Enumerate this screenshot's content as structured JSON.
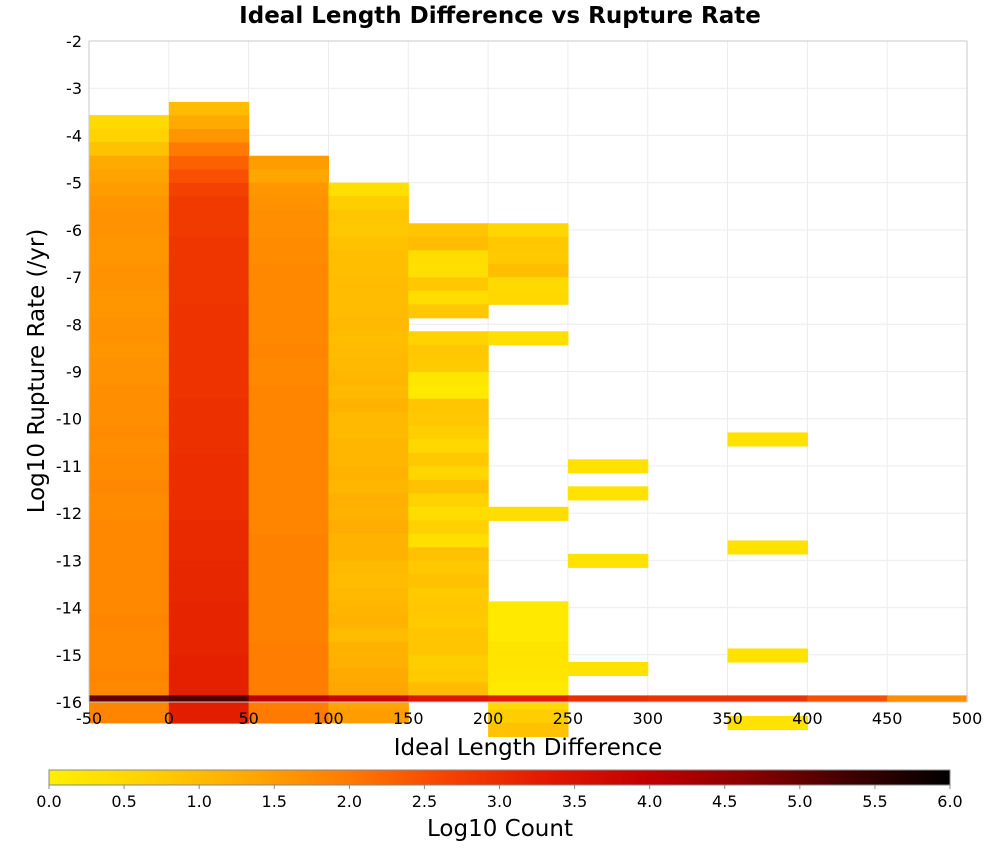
{
  "chart_data": {
    "type": "heatmap",
    "title": "Ideal Length Difference vs Rupture Rate",
    "xlabel": "Ideal Length Difference",
    "ylabel": "Log10 Rupture Rate (/yr)",
    "xlim": [
      -50,
      500
    ],
    "ylim": [
      -16,
      -2
    ],
    "x_ticks": [
      "-50",
      "0",
      "50",
      "100",
      "150",
      "200",
      "250",
      "300",
      "350",
      "400",
      "450",
      "500"
    ],
    "y_ticks": [
      "-2",
      "-3",
      "-4",
      "-5",
      "-6",
      "-7",
      "-8",
      "-9",
      "-10",
      "-11",
      "-12",
      "-13",
      "-14",
      "-15",
      "-16"
    ],
    "grid": true,
    "x_bin_width": 50,
    "y_bin_height": 0.286,
    "colorbar": {
      "label": "Log10 Count",
      "range": [
        0,
        6
      ],
      "ticks": [
        "0.0",
        "0.5",
        "1.0",
        "1.5",
        "2.0",
        "2.5",
        "3.0",
        "3.5",
        "4.0",
        "4.5",
        "5.0",
        "5.5",
        "6.0"
      ],
      "colors": [
        "#fff000",
        "#ffd000",
        "#ffa800",
        "#ff7a00",
        "#f54200",
        "#e01800",
        "#c00000",
        "#880000",
        "#400000",
        "#000000"
      ],
      "placement": "bottom"
    },
    "cells": [
      {
        "x": -25,
        "y_start": -3.57,
        "values": [
          0.45,
          0.6,
          0.9,
          1.3,
          1.4,
          1.5,
          1.6,
          1.65,
          1.65,
          1.6,
          1.6,
          1.65,
          1.65,
          1.6,
          1.6,
          1.65,
          1.65,
          1.6,
          1.65,
          1.65,
          1.7,
          1.7,
          1.7,
          1.75,
          1.7,
          1.75,
          1.75,
          1.8,
          1.75,
          1.75,
          1.8,
          1.8,
          1.8,
          1.8,
          1.8,
          1.8,
          1.8,
          1.85,
          1.8,
          1.8,
          1.8,
          1.85,
          1.8,
          1.85,
          1.85
        ]
      },
      {
        "x": 25,
        "y_start": -3.29,
        "values": [
          1.0,
          1.3,
          1.6,
          2.0,
          2.3,
          2.5,
          2.7,
          2.8,
          2.8,
          2.8,
          2.85,
          2.85,
          2.85,
          2.85,
          2.85,
          2.9,
          2.9,
          2.9,
          2.9,
          2.9,
          2.9,
          2.9,
          2.95,
          2.95,
          2.95,
          2.95,
          3.0,
          3.0,
          3.0,
          3.0,
          3.0,
          3.05,
          3.05,
          3.05,
          3.1,
          3.1,
          3.1,
          3.15,
          3.15,
          3.15,
          3.15,
          3.2,
          3.2,
          3.2,
          3.25,
          3.25
        ]
      },
      {
        "x": 75,
        "y_start": -4.43,
        "values": [
          1.5,
          1.35,
          1.6,
          1.65,
          1.7,
          1.7,
          1.75,
          1.75,
          1.8,
          1.8,
          1.8,
          1.8,
          1.8,
          1.8,
          1.85,
          1.8,
          1.8,
          1.85,
          1.85,
          1.85,
          1.85,
          1.85,
          1.85,
          1.85,
          1.85,
          1.85,
          1.85,
          1.85,
          1.9,
          1.9,
          1.9,
          1.9,
          1.9,
          1.9,
          1.9,
          1.9,
          1.95,
          1.95,
          1.95,
          1.95,
          1.95,
          2.0
        ]
      },
      {
        "x": 125,
        "y_start": -5.0,
        "values": [
          0.35,
          0.7,
          0.85,
          0.8,
          0.9,
          0.95,
          0.95,
          1.0,
          1.0,
          1.0,
          1.05,
          0.95,
          1.0,
          1.05,
          1.1,
          1.05,
          1.15,
          1.05,
          1.05,
          1.1,
          1.1,
          1.15,
          1.1,
          1.2,
          1.15,
          1.25,
          1.15,
          1.15,
          1.05,
          1.0,
          1.05,
          1.1,
          1.15,
          1.0,
          1.15,
          1.2,
          1.3,
          1.35,
          1.4,
          1.5
        ]
      },
      {
        "x": 175,
        "y_start": -5.86,
        "values": [
          0.85,
          1.0,
          0.4,
          0.35,
          0.8,
          0.4,
          0.8,
          null,
          0.6,
          0.8,
          0.75,
          0.2,
          0.15,
          0.85,
          0.8,
          0.7,
          0.5,
          0.8,
          0.55,
          0.9,
          0.6,
          0.4,
          0.65,
          0.35,
          0.9,
          0.8,
          0.9,
          0.75,
          0.8,
          0.75,
          0.85,
          0.85,
          0.7,
          0.75,
          1.0
        ]
      },
      {
        "x": 225,
        "y_start": -5.86,
        "values": [
          0.55,
          0.8,
          0.75,
          0.95,
          0.45,
          0.5,
          null,
          null,
          0.35,
          null,
          null,
          null,
          null,
          null,
          null,
          null,
          null,
          null,
          null,
          null,
          null,
          0.4,
          null,
          null,
          null,
          null,
          null,
          null,
          0.15,
          0.15,
          0.15,
          0.25,
          0.25,
          0.2,
          0.15,
          0.45,
          0.7,
          0.9
        ]
      },
      {
        "x": 275,
        "y_start": -10.86,
        "values": [
          0.3,
          null,
          0.3,
          null,
          null,
          null,
          null,
          0.3,
          null,
          null,
          null,
          null,
          null,
          null,
          null,
          0.3
        ]
      },
      {
        "x": 325,
        "y_start": -15.72,
        "values": [
          null,
          null,
          null
        ]
      },
      {
        "x": 375,
        "y_start": -10.29,
        "values": [
          0.3,
          null,
          null,
          null,
          null,
          null,
          null,
          null,
          0.3,
          null,
          null,
          null,
          null,
          null,
          null,
          null,
          0.3,
          null,
          null,
          null,
          null,
          0.3
        ]
      }
    ],
    "bottom_row": {
      "y_start": -15.86,
      "values": [
        5.0,
        5.2,
        4.0,
        3.8,
        3.4,
        3.3,
        3.0,
        2.9,
        2.9,
        2.5,
        1.7
      ]
    }
  }
}
